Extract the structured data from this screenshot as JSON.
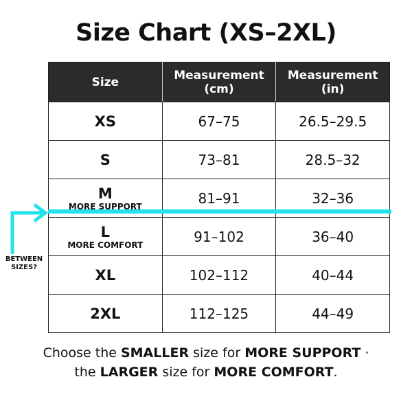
{
  "title": "Size Chart (XS–2XL)",
  "accent_color": "#22e3ea",
  "headers": [
    "Size",
    "Measurement (cm)",
    "Measurement (in)"
  ],
  "rows": [
    {
      "size": "XS",
      "note": "",
      "cm": "67–75",
      "in": "26.5–29.5"
    },
    {
      "size": "S",
      "note": "",
      "cm": "73–81",
      "in": "28.5–32"
    },
    {
      "size": "M",
      "note": "MORE SUPPORT",
      "cm": "81–91",
      "in": "32–36"
    },
    {
      "size": "L",
      "note": "MORE COMFORT",
      "cm": "91–102",
      "in": "36–40"
    },
    {
      "size": "XL",
      "note": "",
      "cm": "102–112",
      "in": "40–44"
    },
    {
      "size": "2XL",
      "note": "",
      "cm": "112–125",
      "in": "44–49"
    }
  ],
  "callout": "BETWEEN SIZES?",
  "footer": {
    "p1": "Choose the ",
    "b1": "SMALLER",
    "p2": " size for ",
    "b2": "MORE SUPPORT",
    "p3": " ·",
    "p4": "the ",
    "b3": "LARGER",
    "p5": " size for ",
    "b4": "MORE COMFORT",
    "p6": "."
  }
}
